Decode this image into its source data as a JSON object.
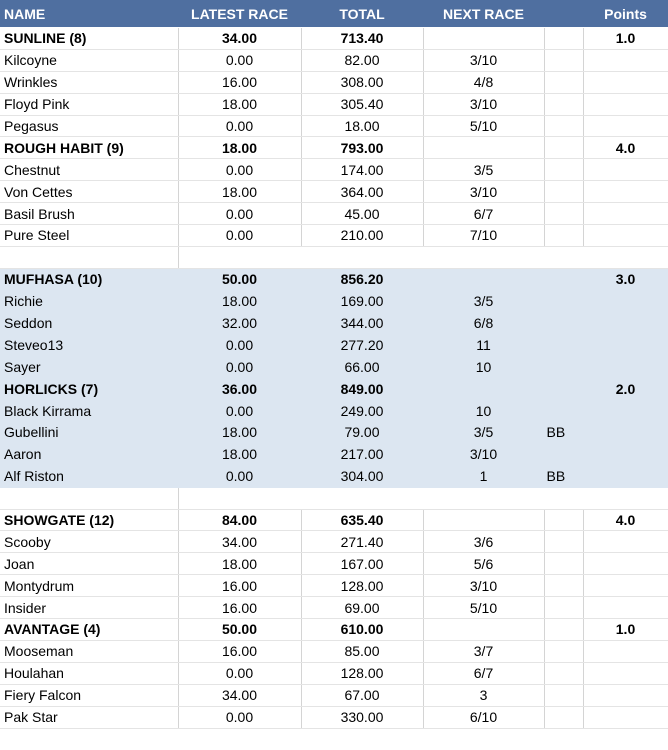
{
  "headers": {
    "name": "NAME",
    "latest": "LATEST RACE",
    "total": "TOTAL",
    "next": "NEXT RACE",
    "extra": "",
    "points": "Points"
  },
  "rows": [
    {
      "type": "team",
      "shade": false,
      "name": "SUNLINE (8)",
      "latest": "34.00",
      "total": "713.40",
      "next": "",
      "extra": "",
      "points": "1.0"
    },
    {
      "type": "horse",
      "shade": false,
      "name": "Kilcoyne",
      "latest": "0.00",
      "total": "82.00",
      "next": "3/10",
      "extra": "",
      "points": ""
    },
    {
      "type": "horse",
      "shade": false,
      "name": "Wrinkles",
      "latest": "16.00",
      "total": "308.00",
      "next": "4/8",
      "extra": "",
      "points": ""
    },
    {
      "type": "horse",
      "shade": false,
      "name": "Floyd Pink",
      "latest": "18.00",
      "total": "305.40",
      "next": "3/10",
      "extra": "",
      "points": ""
    },
    {
      "type": "horse",
      "shade": false,
      "name": "Pegasus",
      "latest": "0.00",
      "total": "18.00",
      "next": "5/10",
      "extra": "",
      "points": ""
    },
    {
      "type": "team",
      "shade": false,
      "name": "ROUGH HABIT (9)",
      "latest": "18.00",
      "total": "793.00",
      "next": "",
      "extra": "",
      "points": "4.0"
    },
    {
      "type": "horse",
      "shade": false,
      "name": "Chestnut",
      "latest": "0.00",
      "total": "174.00",
      "next": "3/5",
      "extra": "",
      "points": ""
    },
    {
      "type": "horse",
      "shade": false,
      "name": "Von Cettes",
      "latest": "18.00",
      "total": "364.00",
      "next": "3/10",
      "extra": "",
      "points": ""
    },
    {
      "type": "horse",
      "shade": false,
      "name": "Basil Brush",
      "latest": "0.00",
      "total": "45.00",
      "next": "6/7",
      "extra": "",
      "points": ""
    },
    {
      "type": "horse",
      "shade": false,
      "name": "Pure Steel",
      "latest": "0.00",
      "total": "210.00",
      "next": "7/10",
      "extra": "",
      "points": ""
    },
    {
      "type": "blank",
      "shade": false,
      "name": "",
      "latest": "",
      "total": "",
      "next": "",
      "extra": "",
      "points": ""
    },
    {
      "type": "team",
      "shade": true,
      "name": "MUFHASA (10)",
      "latest": "50.00",
      "total": "856.20",
      "next": "",
      "extra": "",
      "points": "3.0"
    },
    {
      "type": "horse",
      "shade": true,
      "name": "Richie",
      "latest": "18.00",
      "total": "169.00",
      "next": "3/5",
      "extra": "",
      "points": ""
    },
    {
      "type": "horse",
      "shade": true,
      "name": "Seddon",
      "latest": "32.00",
      "total": "344.00",
      "next": "6/8",
      "extra": "",
      "points": ""
    },
    {
      "type": "horse",
      "shade": true,
      "name": "Steveo13",
      "latest": "0.00",
      "total": "277.20",
      "next": "11",
      "extra": "",
      "points": ""
    },
    {
      "type": "horse",
      "shade": true,
      "name": "Sayer",
      "latest": "0.00",
      "total": "66.00",
      "next": "10",
      "extra": "",
      "points": ""
    },
    {
      "type": "team",
      "shade": true,
      "name": "HORLICKS (7)",
      "latest": "36.00",
      "total": "849.00",
      "next": "",
      "extra": "",
      "points": "2.0"
    },
    {
      "type": "horse",
      "shade": true,
      "name": "Black Kirrama",
      "latest": "0.00",
      "total": "249.00",
      "next": "10",
      "extra": "",
      "points": ""
    },
    {
      "type": "horse",
      "shade": true,
      "name": "Gubellini",
      "latest": "18.00",
      "total": "79.00",
      "next": "3/5",
      "extra": "BB",
      "points": ""
    },
    {
      "type": "horse",
      "shade": true,
      "name": "Aaron",
      "latest": "18.00",
      "total": "217.00",
      "next": "3/10",
      "extra": "",
      "points": ""
    },
    {
      "type": "horse",
      "shade": true,
      "name": "Alf Riston",
      "latest": "0.00",
      "total": "304.00",
      "next": "1",
      "extra": "BB",
      "points": ""
    },
    {
      "type": "blank",
      "shade": false,
      "name": "",
      "latest": "",
      "total": "",
      "next": "",
      "extra": "",
      "points": ""
    },
    {
      "type": "team",
      "shade": false,
      "name": "SHOWGATE (12)",
      "latest": "84.00",
      "total": "635.40",
      "next": "",
      "extra": "",
      "points": "4.0"
    },
    {
      "type": "horse",
      "shade": false,
      "name": "Scooby",
      "latest": "34.00",
      "total": "271.40",
      "next": "3/6",
      "extra": "",
      "points": ""
    },
    {
      "type": "horse",
      "shade": false,
      "name": "Joan",
      "latest": "18.00",
      "total": "167.00",
      "next": "5/6",
      "extra": "",
      "points": ""
    },
    {
      "type": "horse",
      "shade": false,
      "name": "Montydrum",
      "latest": "16.00",
      "total": "128.00",
      "next": "3/10",
      "extra": "",
      "points": ""
    },
    {
      "type": "horse",
      "shade": false,
      "name": "Insider",
      "latest": "16.00",
      "total": "69.00",
      "next": "5/10",
      "extra": "",
      "points": ""
    },
    {
      "type": "team",
      "shade": false,
      "name": "AVANTAGE (4)",
      "latest": "50.00",
      "total": "610.00",
      "next": "",
      "extra": "",
      "points": "1.0"
    },
    {
      "type": "horse",
      "shade": false,
      "name": "Mooseman",
      "latest": "16.00",
      "total": "85.00",
      "next": "3/7",
      "extra": "",
      "points": ""
    },
    {
      "type": "horse",
      "shade": false,
      "name": "Houlahan",
      "latest": "0.00",
      "total": "128.00",
      "next": "6/7",
      "extra": "",
      "points": ""
    },
    {
      "type": "horse",
      "shade": false,
      "name": "Fiery Falcon",
      "latest": "34.00",
      "total": "67.00",
      "next": "3",
      "extra": "",
      "points": ""
    },
    {
      "type": "horse",
      "shade": false,
      "name": "Pak Star",
      "latest": "0.00",
      "total": "330.00",
      "next": "6/10",
      "extra": "",
      "points": ""
    }
  ]
}
